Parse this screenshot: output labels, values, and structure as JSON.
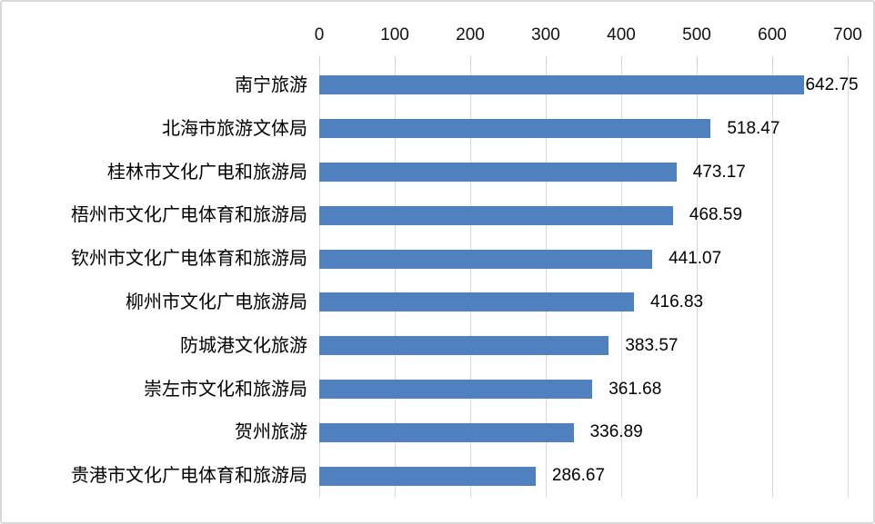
{
  "chart_data": {
    "type": "bar",
    "orientation": "horizontal",
    "title": "",
    "xlabel": "",
    "ylabel": "",
    "categories": [
      "南宁旅游",
      "北海市旅游文体局",
      "桂林市文化广电和旅游局",
      "梧州市文化广电体育和旅游局",
      "钦州市文化广电体育和旅游局",
      "柳州市文化广电旅游局",
      "防城港文化旅游",
      "崇左市文化和旅游局",
      "贺州旅游",
      "贵港市文化广电体育和旅游局"
    ],
    "values": [
      642.75,
      518.47,
      473.17,
      468.59,
      441.07,
      416.83,
      383.57,
      361.68,
      336.89,
      286.67
    ],
    "value_labels": [
      "642.75",
      "518.47",
      "473.17",
      "468.59",
      "441.07",
      "416.83",
      "383.57",
      "361.68",
      "336.89",
      "286.67"
    ],
    "x_axis": {
      "position": "top",
      "min": 0,
      "max": 700,
      "ticks": [
        "0",
        "100",
        "200",
        "300",
        "400",
        "500",
        "600",
        "700"
      ],
      "tick_values": [
        0,
        100,
        200,
        300,
        400,
        500,
        600,
        700
      ]
    },
    "grid": "vertical",
    "legend": false,
    "colors": {
      "bar": "#4e81bd",
      "gridline": "#d9d9d9",
      "tick": "#cfcfcf",
      "text": "#000000",
      "border": "#d9d9d9",
      "background": "#ffffff"
    }
  }
}
